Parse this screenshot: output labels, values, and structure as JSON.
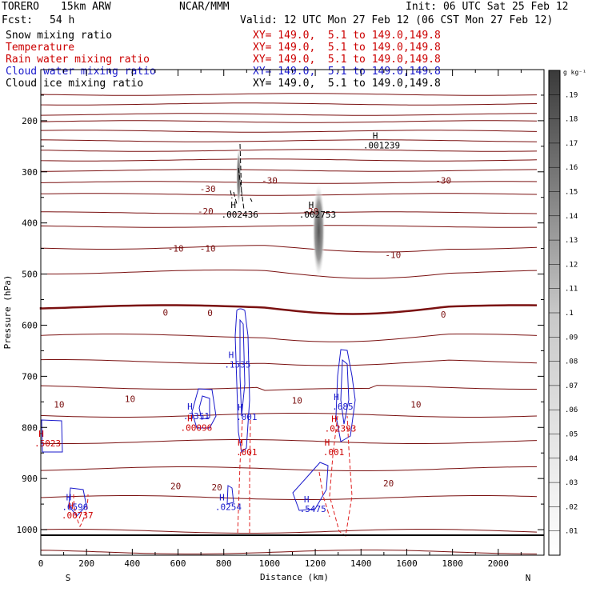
{
  "header": {
    "model": "TORERO",
    "resolution": "15km ARW",
    "center": "NCAR/MMM",
    "init": "Init: 06 UTC Sat 25 Feb 12",
    "fcst_label": "Fcst:",
    "fcst_value": "54 h",
    "valid": "Valid: 12 UTC Mon 27 Feb 12 (06 CST Mon 27 Feb 12)"
  },
  "legend": [
    {
      "label": "Snow mixing ratio",
      "range": "XY= 149.0,  5.1 to 149.0,149.8",
      "color": "#000000"
    },
    {
      "label": "Temperature",
      "range": "XY= 149.0,  5.1 to 149.0,149.8",
      "color": "#cc0000"
    },
    {
      "label": "Rain water mixing ratio",
      "range": "XY= 149.0,  5.1 to 149.0,149.8",
      "color": "#cc0000"
    },
    {
      "label": "Cloud water mixing ratio",
      "range": "XY= 149.0,  5.1 to 149.0,149.8",
      "color": "#0000cc"
    },
    {
      "label": "Cloud ice mixing ratio",
      "range": "XY= 149.0,  5.1 to 149.0,149.8",
      "color": "#000000"
    }
  ],
  "colors": {
    "temperature": "#7a1010",
    "rain": "#e02020",
    "cloud_water": "#1a1acc",
    "ice": "#000000"
  },
  "chart_data": {
    "type": "contour",
    "xlabel": "Distance (km)",
    "ylabel": "Pressure (hPa)",
    "xlim": [
      0,
      2200
    ],
    "ylim": [
      1050,
      100
    ],
    "xticks": [
      0,
      200,
      400,
      600,
      800,
      1000,
      1200,
      1400,
      1600,
      1800,
      2000
    ],
    "yticks": [
      200,
      300,
      400,
      500,
      600,
      700,
      800,
      900,
      1000
    ],
    "x_end_labels": {
      "left": "S",
      "right": "N"
    },
    "colorbar": {
      "unit": "g kg⁻¹",
      "ticks": [
        ".01",
        ".02",
        ".03",
        ".04",
        ".05",
        ".06",
        ".07",
        ".08",
        ".09",
        ".1",
        ".11",
        ".12",
        ".13",
        ".14",
        ".15",
        ".16",
        ".17",
        ".18",
        ".19"
      ],
      "max": 0.2
    },
    "temperature_labels": [
      {
        "text": "-30",
        "x": 730,
        "p": 333
      },
      {
        "text": "-30",
        "x": 1000,
        "p": 317
      },
      {
        "text": "-30",
        "x": 1760,
        "p": 317
      },
      {
        "text": "-20",
        "x": 720,
        "p": 377
      },
      {
        "text": "-20",
        "x": 1180,
        "p": 377
      },
      {
        "text": "-10",
        "x": 590,
        "p": 450
      },
      {
        "text": "-10",
        "x": 730,
        "p": 450
      },
      {
        "text": "-10",
        "x": 1540,
        "p": 462
      },
      {
        "text": "0",
        "x": 545,
        "p": 575
      },
      {
        "text": "0",
        "x": 740,
        "p": 576
      },
      {
        "text": "0",
        "x": 1760,
        "p": 579
      },
      {
        "text": "10",
        "x": 80,
        "p": 755
      },
      {
        "text": "10",
        "x": 390,
        "p": 744
      },
      {
        "text": "10",
        "x": 1120,
        "p": 747
      },
      {
        "text": "10",
        "x": 1640,
        "p": 755
      },
      {
        "text": "20",
        "x": 590,
        "p": 915
      },
      {
        "text": "20",
        "x": 770,
        "p": 917
      },
      {
        "text": "20",
        "x": 1520,
        "p": 909
      }
    ],
    "max_labels": [
      {
        "text": ".001239",
        "x": 1490,
        "p": 248,
        "color": "#000000"
      },
      {
        "text": ".002436",
        "x": 870,
        "p": 383,
        "color": "#000000"
      },
      {
        "text": ".002753",
        "x": 1210,
        "p": 383,
        "color": "#000000"
      },
      {
        "text": ".1535",
        "x": 860,
        "p": 677,
        "color": "#1a1acc"
      },
      {
        "text": ".3351",
        "x": 680,
        "p": 778,
        "color": "#1a1acc"
      },
      {
        "text": ".00096",
        "x": 680,
        "p": 800,
        "color": "#cc0000"
      },
      {
        "text": ".685",
        "x": 1320,
        "p": 759,
        "color": "#1a1acc"
      },
      {
        "text": ".02393",
        "x": 1310,
        "p": 802,
        "color": "#cc0000"
      },
      {
        "text": ".001",
        "x": 900,
        "p": 779,
        "color": "#1a1acc"
      },
      {
        "text": ".001",
        "x": 900,
        "p": 848,
        "color": "#cc0000"
      },
      {
        "text": ".001",
        "x": 1280,
        "p": 848,
        "color": "#cc0000"
      },
      {
        "text": ".6596",
        "x": 150,
        "p": 955,
        "color": "#1a1acc"
      },
      {
        "text": ".00737",
        "x": 160,
        "p": 972,
        "color": "#cc0000"
      },
      {
        "text": ".0254",
        "x": 820,
        "p": 955,
        "color": "#1a1acc"
      },
      {
        "text": ".5475",
        "x": 1190,
        "p": 959,
        "color": "#1a1acc"
      },
      {
        "text": ".5023",
        "x": 30,
        "p": 831,
        "color": "#cc0000"
      }
    ]
  }
}
